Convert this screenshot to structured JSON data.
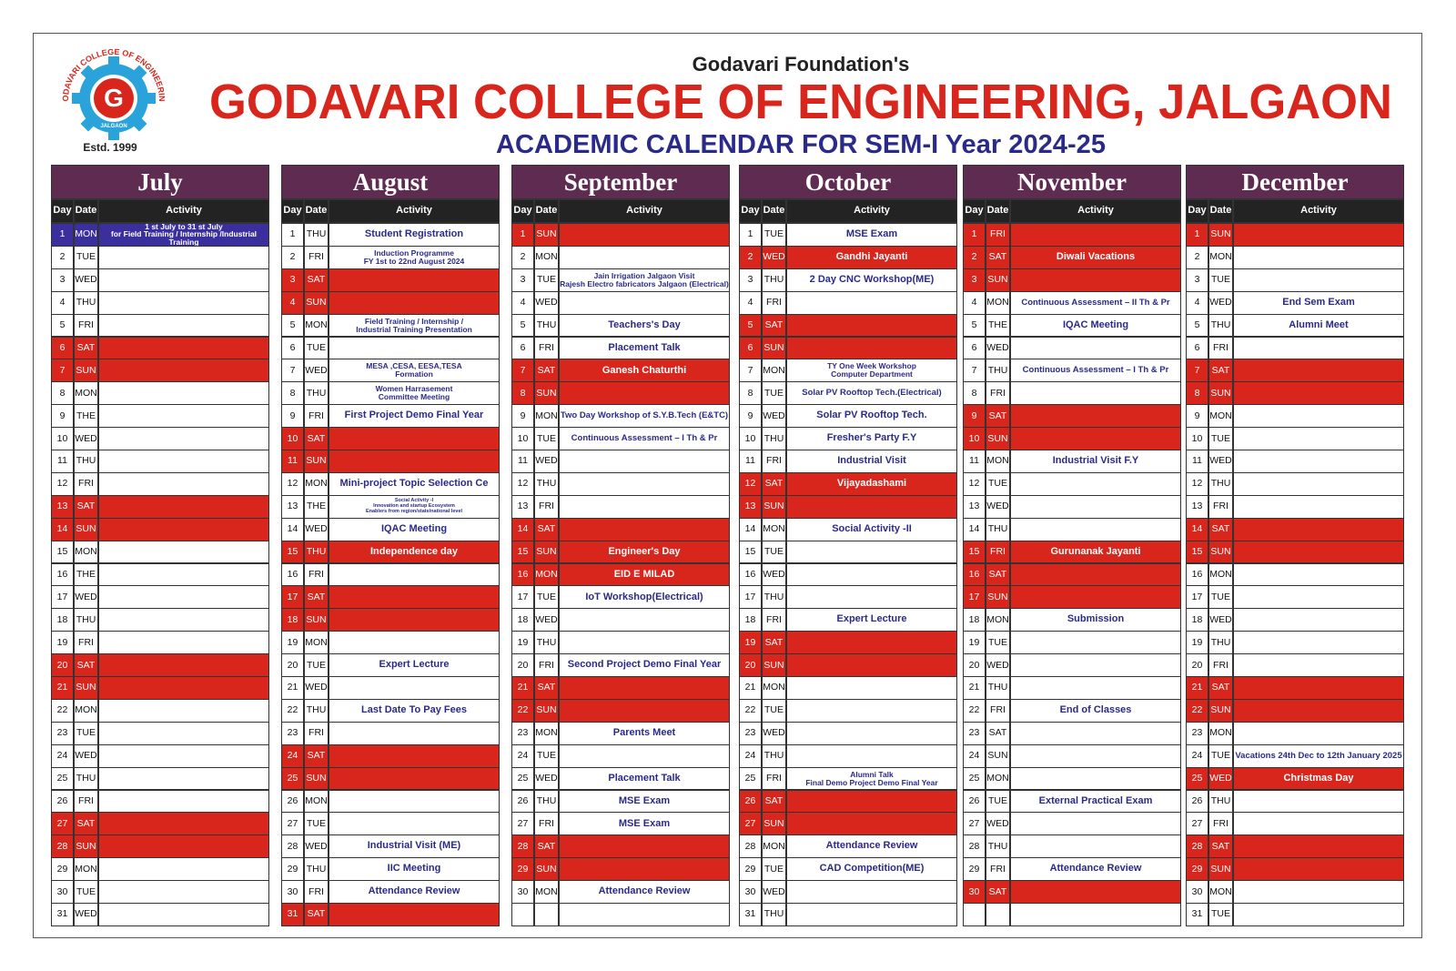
{
  "header": {
    "foundation": "Godavari Foundation's",
    "college": "GODAVARI COLLEGE OF ENGINEERING, JALGAON",
    "subtitle": "ACADEMIC CALENDAR FOR SEM-I Year 2024-25",
    "logo_text": "GODAVARI COLLEGE OF ENGINEERING",
    "logo_city": "JALGAON",
    "logo_letter": "G",
    "estd": "Estd. 1999"
  },
  "column_headers": [
    "Day",
    "Date",
    "Activity"
  ],
  "colors": {
    "month_header": "#5e2c50",
    "column_header": "#232323",
    "red": "#d8261d",
    "blue": "#3b2f9e",
    "activity_text": "#2a2a8a",
    "title": "#d8261d",
    "subtitle": "#2a2a8a"
  },
  "months": [
    {
      "name": "July",
      "red_days": [
        6,
        7,
        13,
        14,
        20,
        21,
        27,
        28
      ],
      "blue_days": [
        1
      ],
      "rows": [
        [
          1,
          "MON",
          "1 st July to 31 st July\nfor  Field Training / Internship /Industrial Training"
        ],
        [
          2,
          "TUE"
        ],
        [
          3,
          "WED"
        ],
        [
          4,
          "THU"
        ],
        [
          5,
          "FRI"
        ],
        [
          6,
          "SAT"
        ],
        [
          7,
          "SUN"
        ],
        [
          8,
          "MON"
        ],
        [
          9,
          "THE"
        ],
        [
          10,
          "WED"
        ],
        [
          11,
          "THU"
        ],
        [
          12,
          "FRI"
        ],
        [
          13,
          "SAT"
        ],
        [
          14,
          "SUN"
        ],
        [
          15,
          "MON"
        ],
        [
          16,
          "THE"
        ],
        [
          17,
          "WED"
        ],
        [
          18,
          "THU"
        ],
        [
          19,
          "FRI"
        ],
        [
          20,
          "SAT"
        ],
        [
          21,
          "SUN"
        ],
        [
          22,
          "MON"
        ],
        [
          23,
          "TUE"
        ],
        [
          24,
          "WED"
        ],
        [
          25,
          "THU"
        ],
        [
          26,
          "FRI"
        ],
        [
          27,
          "SAT"
        ],
        [
          28,
          "SUN"
        ],
        [
          29,
          "MON"
        ],
        [
          30,
          "TUE"
        ],
        [
          31,
          "WED"
        ]
      ]
    },
    {
      "name": "August",
      "red_days": [
        3,
        4,
        10,
        11,
        15,
        17,
        18,
        24,
        25,
        31
      ],
      "rows": [
        [
          1,
          "THU",
          "Student Registration"
        ],
        [
          2,
          "FRI",
          "Induction Programme\nFY 1st to 22nd August 2024"
        ],
        [
          3,
          "SAT"
        ],
        [
          4,
          "SUN"
        ],
        [
          5,
          "MON",
          "Field Training / Internship /\nIndustrial Training Presentation"
        ],
        [
          6,
          "TUE"
        ],
        [
          7,
          "WED",
          "MESA ,CESA, EESA,TESA\nFormation"
        ],
        [
          8,
          "THU",
          "Women Harrasement\nCommittee Meeting"
        ],
        [
          9,
          "FRI",
          "First Project Demo Final Year"
        ],
        [
          10,
          "SAT"
        ],
        [
          11,
          "SUN"
        ],
        [
          12,
          "MON",
          "Mini-project Topic Selection Ce"
        ],
        [
          13,
          "THE",
          "Social Activity -I\nInnovation and startup Ecosystem\nEnablers from region/state/national level"
        ],
        [
          14,
          "WED",
          "IQAC Meeting"
        ],
        [
          15,
          "THU",
          "Independence day"
        ],
        [
          16,
          "FRI"
        ],
        [
          17,
          "SAT"
        ],
        [
          18,
          "SUN"
        ],
        [
          19,
          "MON"
        ],
        [
          20,
          "TUE",
          "Expert Lecture"
        ],
        [
          21,
          "WED"
        ],
        [
          22,
          "THU",
          "Last Date To Pay Fees"
        ],
        [
          23,
          "FRI"
        ],
        [
          24,
          "SAT"
        ],
        [
          25,
          "SUN"
        ],
        [
          26,
          "MON"
        ],
        [
          27,
          "TUE"
        ],
        [
          28,
          "WED",
          "Industrial Visit (ME)"
        ],
        [
          29,
          "THU",
          "IIC Meeting"
        ],
        [
          30,
          "FRI",
          "Attendance Review"
        ],
        [
          31,
          "SAT"
        ]
      ]
    },
    {
      "name": "September",
      "red_days": [
        1,
        7,
        8,
        14,
        15,
        16,
        21,
        22,
        28,
        29
      ],
      "rows": [
        [
          1,
          "SUN"
        ],
        [
          2,
          "MON"
        ],
        [
          3,
          "TUE",
          "Jain Irrigation Jalgaon Visit\nRajesh Electro fabricators Jalgaon (Electrical)"
        ],
        [
          4,
          "WED"
        ],
        [
          5,
          "THU",
          "Teachers's Day"
        ],
        [
          6,
          "FRI",
          "Placement Talk"
        ],
        [
          7,
          "SAT",
          "Ganesh Chaturthi"
        ],
        [
          8,
          "SUN"
        ],
        [
          9,
          "MON",
          "Two Day Workshop of S.Y.B.Tech (E&TC)"
        ],
        [
          10,
          "TUE",
          "Continuous Assessment – I Th & Pr"
        ],
        [
          11,
          "WED"
        ],
        [
          12,
          "THU"
        ],
        [
          13,
          "FRI"
        ],
        [
          14,
          "SAT"
        ],
        [
          15,
          "SUN",
          "Engineer's Day"
        ],
        [
          16,
          "MON",
          "EID E MILAD"
        ],
        [
          17,
          "TUE",
          "IoT Workshop(Electrical)"
        ],
        [
          18,
          "WED"
        ],
        [
          19,
          "THU"
        ],
        [
          20,
          "FRI",
          "Second Project Demo Final Year"
        ],
        [
          21,
          "SAT"
        ],
        [
          22,
          "SUN"
        ],
        [
          23,
          "MON",
          "Parents Meet"
        ],
        [
          24,
          "TUE"
        ],
        [
          25,
          "WED",
          "Placement Talk"
        ],
        [
          26,
          "THU",
          "MSE Exam"
        ],
        [
          27,
          "FRI",
          "MSE Exam"
        ],
        [
          28,
          "SAT"
        ],
        [
          29,
          "SUN"
        ],
        [
          30,
          "MON",
          "Attendance Review"
        ]
      ]
    },
    {
      "name": "October",
      "red_days": [
        2,
        5,
        6,
        12,
        13,
        19,
        20,
        26,
        27
      ],
      "rows": [
        [
          1,
          "TUE",
          "MSE Exam"
        ],
        [
          2,
          "WED",
          "Gandhi Jayanti"
        ],
        [
          3,
          "THU",
          "2 Day CNC Workshop(ME)"
        ],
        [
          4,
          "FRI"
        ],
        [
          5,
          "SAT"
        ],
        [
          6,
          "SUN"
        ],
        [
          7,
          "MON",
          "TY One Week Workshop\nComputer Department"
        ],
        [
          8,
          "TUE",
          "Solar PV Rooftop Tech.(Electrical)"
        ],
        [
          9,
          "WED",
          "Solar PV Rooftop Tech."
        ],
        [
          10,
          "THU",
          "Fresher's Party F.Y"
        ],
        [
          11,
          "FRI",
          "Industrial Visit"
        ],
        [
          12,
          "SAT",
          "Vijayadashami"
        ],
        [
          13,
          "SUN"
        ],
        [
          14,
          "MON",
          "Social Activity -II"
        ],
        [
          15,
          "TUE"
        ],
        [
          16,
          "WED"
        ],
        [
          17,
          "THU"
        ],
        [
          18,
          "FRI",
          "Expert Lecture"
        ],
        [
          19,
          "SAT"
        ],
        [
          20,
          "SUN"
        ],
        [
          21,
          "MON"
        ],
        [
          22,
          "TUE"
        ],
        [
          23,
          "WED"
        ],
        [
          24,
          "THU"
        ],
        [
          25,
          "FRI",
          "Alumni Talk\nFinal Demo Project Demo Final Year"
        ],
        [
          26,
          "SAT"
        ],
        [
          27,
          "SUN"
        ],
        [
          28,
          "MON",
          "Attendance Review"
        ],
        [
          29,
          "TUE",
          "CAD Competition(ME)"
        ],
        [
          30,
          "WED"
        ],
        [
          31,
          "THU"
        ]
      ]
    },
    {
      "name": "November",
      "red_days": [
        1,
        2,
        3,
        9,
        10,
        15,
        16,
        17,
        30
      ],
      "rows": [
        [
          1,
          "FRI"
        ],
        [
          2,
          "SAT",
          "Diwali Vacations"
        ],
        [
          3,
          "SUN"
        ],
        [
          4,
          "MON",
          "Continuous Assessment – II Th & Pr"
        ],
        [
          5,
          "THE",
          "IQAC Meeting"
        ],
        [
          6,
          "WED"
        ],
        [
          7,
          "THU",
          "Continuous Assessment – I Th & Pr"
        ],
        [
          8,
          "FRI"
        ],
        [
          9,
          "SAT"
        ],
        [
          10,
          "SUN"
        ],
        [
          11,
          "MON",
          "Industrial Visit F.Y"
        ],
        [
          12,
          "TUE"
        ],
        [
          13,
          "WED"
        ],
        [
          14,
          "THU"
        ],
        [
          15,
          "FRI",
          "Gurunanak Jayanti"
        ],
        [
          16,
          "SAT"
        ],
        [
          17,
          "SUN"
        ],
        [
          18,
          "MON",
          "Submission"
        ],
        [
          19,
          "TUE"
        ],
        [
          20,
          "WED"
        ],
        [
          21,
          "THU"
        ],
        [
          22,
          "FRI",
          "End of Classes"
        ],
        [
          23,
          "SAT"
        ],
        [
          24,
          "SUN"
        ],
        [
          25,
          "MON"
        ],
        [
          26,
          "TUE",
          "External Practical Exam"
        ],
        [
          27,
          "WED"
        ],
        [
          28,
          "THU"
        ],
        [
          29,
          "FRI",
          "Attendance Review"
        ],
        [
          30,
          "SAT"
        ]
      ]
    },
    {
      "name": "December",
      "red_days": [
        1,
        7,
        8,
        14,
        15,
        21,
        22,
        25,
        28,
        29
      ],
      "rows": [
        [
          1,
          "SUN"
        ],
        [
          2,
          "MON"
        ],
        [
          3,
          "TUE"
        ],
        [
          4,
          "WED",
          "End Sem Exam"
        ],
        [
          5,
          "THU",
          "Alumni Meet"
        ],
        [
          6,
          "FRI"
        ],
        [
          7,
          "SAT"
        ],
        [
          8,
          "SUN"
        ],
        [
          9,
          "MON"
        ],
        [
          10,
          "TUE"
        ],
        [
          11,
          "WED"
        ],
        [
          12,
          "THU"
        ],
        [
          13,
          "FRI"
        ],
        [
          14,
          "SAT"
        ],
        [
          15,
          "SUN"
        ],
        [
          16,
          "MON"
        ],
        [
          17,
          "TUE"
        ],
        [
          18,
          "WED"
        ],
        [
          19,
          "THU"
        ],
        [
          20,
          "FRI"
        ],
        [
          21,
          "SAT"
        ],
        [
          22,
          "SUN"
        ],
        [
          23,
          "MON"
        ],
        [
          24,
          "TUE",
          "Vacations 24th Dec to 12th January 2025"
        ],
        [
          25,
          "WED",
          "Christmas Day"
        ],
        [
          26,
          "THU"
        ],
        [
          27,
          "FRI"
        ],
        [
          28,
          "SAT"
        ],
        [
          29,
          "SUN"
        ],
        [
          30,
          "MON"
        ],
        [
          31,
          "TUE"
        ]
      ]
    }
  ]
}
